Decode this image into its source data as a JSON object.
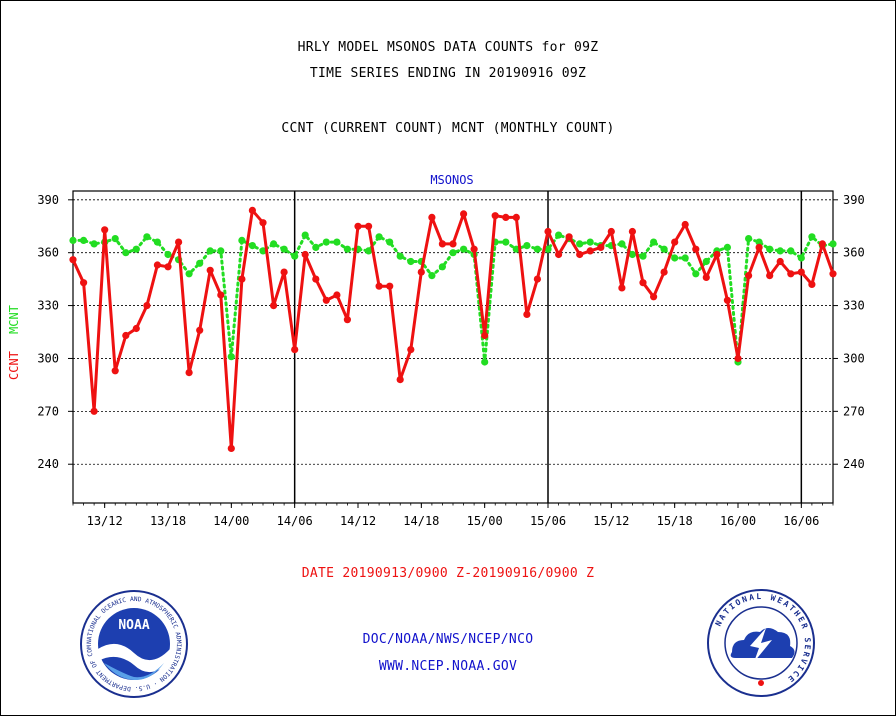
{
  "header": {
    "title_line1": "HRLY MODEL MSONOS DATA COUNTS for 09Z",
    "title_line2": "TIME SERIES ENDING IN 20190916 09Z",
    "legend_line": "CCNT (CURRENT COUNT) MCNT (MONTHLY COUNT)"
  },
  "footer": {
    "date_range": "DATE 20190913/0900 Z-20190916/0900 Z",
    "org_path": "DOC/NOAA/NWS/NCEP/NCO",
    "url": "WWW.NCEP.NOAA.GOV",
    "noaa_logo_text": "NOAA",
    "noaa_ring_text": "NATIONAL OCEANIC AND ATMOSPHERIC ADMINISTRATION · U.S. DEPARTMENT OF COMMERCE ·",
    "nws_ring_text": "NATIONAL WEATHER SERVICE"
  },
  "colors": {
    "ccnt": "#ee1111",
    "mcnt": "#22dd22",
    "plot_title": "#1111cc",
    "footer_text": "#1111cc",
    "date_text": "#ee1111"
  },
  "chart_data": {
    "type": "line",
    "title": "MSONOS",
    "ylabel_left_ccnt": "CCNT",
    "ylabel_left_mcnt": "MCNT",
    "ylim": [
      218,
      395
    ],
    "yticks": [
      240,
      270,
      300,
      330,
      360,
      390
    ],
    "xlim": [
      0,
      72
    ],
    "xtick_positions": [
      3,
      9,
      15,
      21,
      27,
      33,
      39,
      45,
      51,
      57,
      63,
      69
    ],
    "xtick_labels": [
      "13/12",
      "13/18",
      "14/00",
      "14/06",
      "14/12",
      "14/18",
      "15/00",
      "15/06",
      "15/12",
      "15/18",
      "16/00",
      "16/06"
    ],
    "day_dividers": [
      21,
      45,
      69
    ],
    "grid": "horizontal",
    "series": [
      {
        "name": "CCNT",
        "style": "solid",
        "values": [
          356,
          343,
          270,
          373,
          293,
          313,
          317,
          330,
          353,
          352,
          366,
          292,
          316,
          350,
          336,
          249,
          345,
          384,
          377,
          330,
          349,
          305,
          359,
          345,
          333,
          336,
          322,
          375,
          375,
          341,
          341,
          288,
          305,
          349,
          380,
          365,
          365,
          382,
          362,
          313,
          381,
          380,
          380,
          325,
          345,
          372,
          359,
          369,
          359,
          361,
          363,
          372,
          340,
          372,
          343,
          335,
          349,
          366,
          376,
          362,
          346,
          359,
          333,
          300,
          347,
          363,
          347,
          355,
          348,
          349,
          342,
          365,
          348
        ]
      },
      {
        "name": "MCNT",
        "style": "dotted",
        "values": [
          367,
          367,
          365,
          366,
          368,
          360,
          362,
          369,
          366,
          359,
          356,
          348,
          354,
          361,
          361,
          301,
          367,
          364,
          361,
          365,
          362,
          358,
          370,
          363,
          366,
          366,
          362,
          362,
          361,
          369,
          366,
          358,
          355,
          355,
          347,
          352,
          360,
          362,
          359,
          298,
          366,
          366,
          362,
          364,
          362,
          362,
          370,
          368,
          365,
          366,
          364,
          364,
          365,
          359,
          358,
          366,
          362,
          357,
          357,
          348,
          355,
          361,
          363,
          298,
          368,
          366,
          362,
          361,
          361,
          357,
          369,
          364,
          365
        ]
      }
    ]
  }
}
